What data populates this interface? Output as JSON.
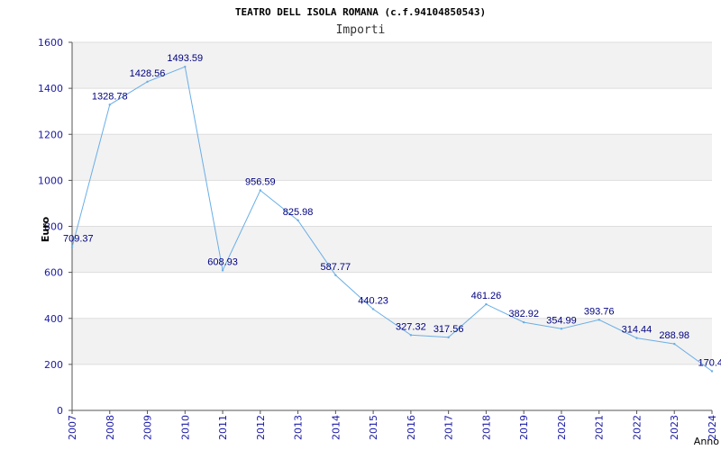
{
  "chart_data": {
    "type": "line",
    "title": "TEATRO DELL ISOLA ROMANA (c.f.94104850543)",
    "subtitle": "Importi",
    "ylabel": "Euro",
    "xlabel": "Anno",
    "ylim": [
      0,
      1600
    ],
    "yticks": [
      0,
      200,
      400,
      600,
      800,
      1000,
      1200,
      1400,
      1600
    ],
    "grid": true,
    "categories": [
      "2007",
      "2008",
      "2009",
      "2010",
      "2011",
      "2012",
      "2013",
      "2014",
      "2015",
      "2016",
      "2017",
      "2018",
      "2019",
      "2020",
      "2021",
      "2022",
      "2023",
      "2024"
    ],
    "series": [
      {
        "values": [
          709.37,
          1328.78,
          1428.56,
          1493.59,
          608.93,
          956.59,
          825.98,
          587.77,
          440.23,
          327.32,
          317.56,
          461.26,
          382.92,
          354.99,
          393.76,
          314.44,
          288.98,
          170.4
        ],
        "labels": [
          "709.37",
          "1328.78",
          "1428.56",
          "1493.59",
          "608.93",
          "956.59",
          "825.98",
          "587.77",
          "440.23",
          "327.32",
          "317.56",
          "461.26",
          "382.92",
          "354.99",
          "393.76",
          "314.44",
          "288.98",
          "170.4"
        ]
      }
    ],
    "colors": {
      "line": "#6aaee6",
      "band": "#f2f2f2",
      "grid": "#dddddd",
      "axis": "#555555",
      "tick": "#1a1aa6",
      "label": "#000080"
    }
  }
}
